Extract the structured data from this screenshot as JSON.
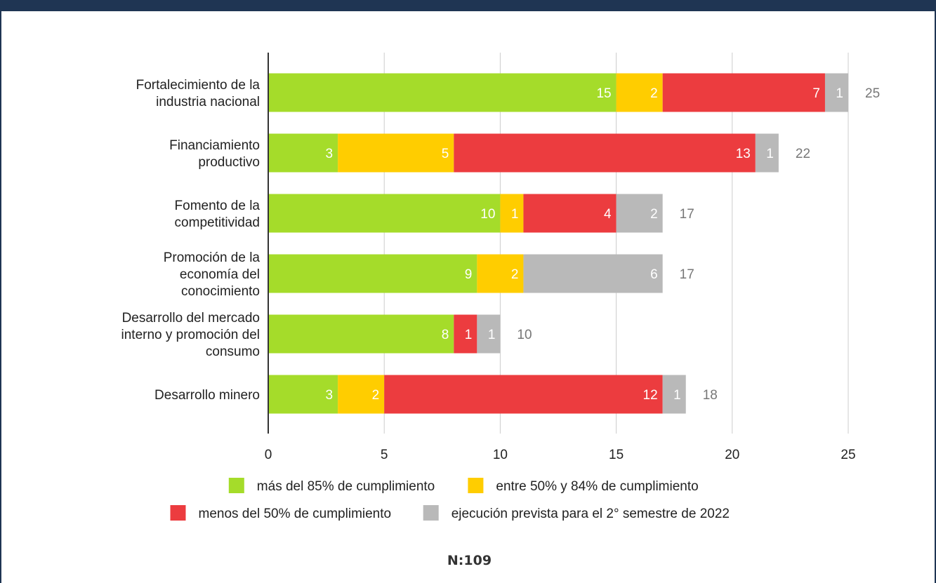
{
  "header": {
    "color": "#1f3553"
  },
  "chart_data": {
    "type": "bar",
    "orientation": "horizontal",
    "stacked": true,
    "categories": [
      [
        "Fortalecimiento de la",
        "industria nacional"
      ],
      [
        "Financiamiento",
        "productivo"
      ],
      [
        "Fomento de la",
        "competitividad"
      ],
      [
        "Promoción de la",
        "economía del",
        "conocimiento"
      ],
      [
        "Desarrollo del mercado",
        "interno y promoción del",
        "consumo"
      ],
      [
        "Desarrollo minero"
      ]
    ],
    "series": [
      {
        "name": "más del 85% de cumplimiento",
        "color": "#a5dc2a",
        "values": [
          15,
          3,
          10,
          9,
          8,
          3
        ]
      },
      {
        "name": "entre 50% y 84% de cumplimiento",
        "color": "#ffcd00",
        "values": [
          2,
          5,
          1,
          2,
          0,
          2
        ]
      },
      {
        "name": "menos del 50% de cumplimiento",
        "color": "#ec3c3f",
        "values": [
          7,
          13,
          4,
          0,
          1,
          12
        ]
      },
      {
        "name": "ejecución prevista para el 2° semestre de 2022",
        "color": "#b9b9b9",
        "values": [
          1,
          1,
          2,
          6,
          1,
          1
        ]
      }
    ],
    "totals": [
      25,
      22,
      17,
      17,
      10,
      18
    ],
    "xlim": [
      0,
      25
    ],
    "xticks": [
      0,
      5,
      10,
      15,
      20,
      25
    ],
    "grid": true,
    "legend_position": "bottom",
    "title": "",
    "xlabel": "",
    "ylabel": ""
  },
  "footer": {
    "note": "N:109"
  }
}
